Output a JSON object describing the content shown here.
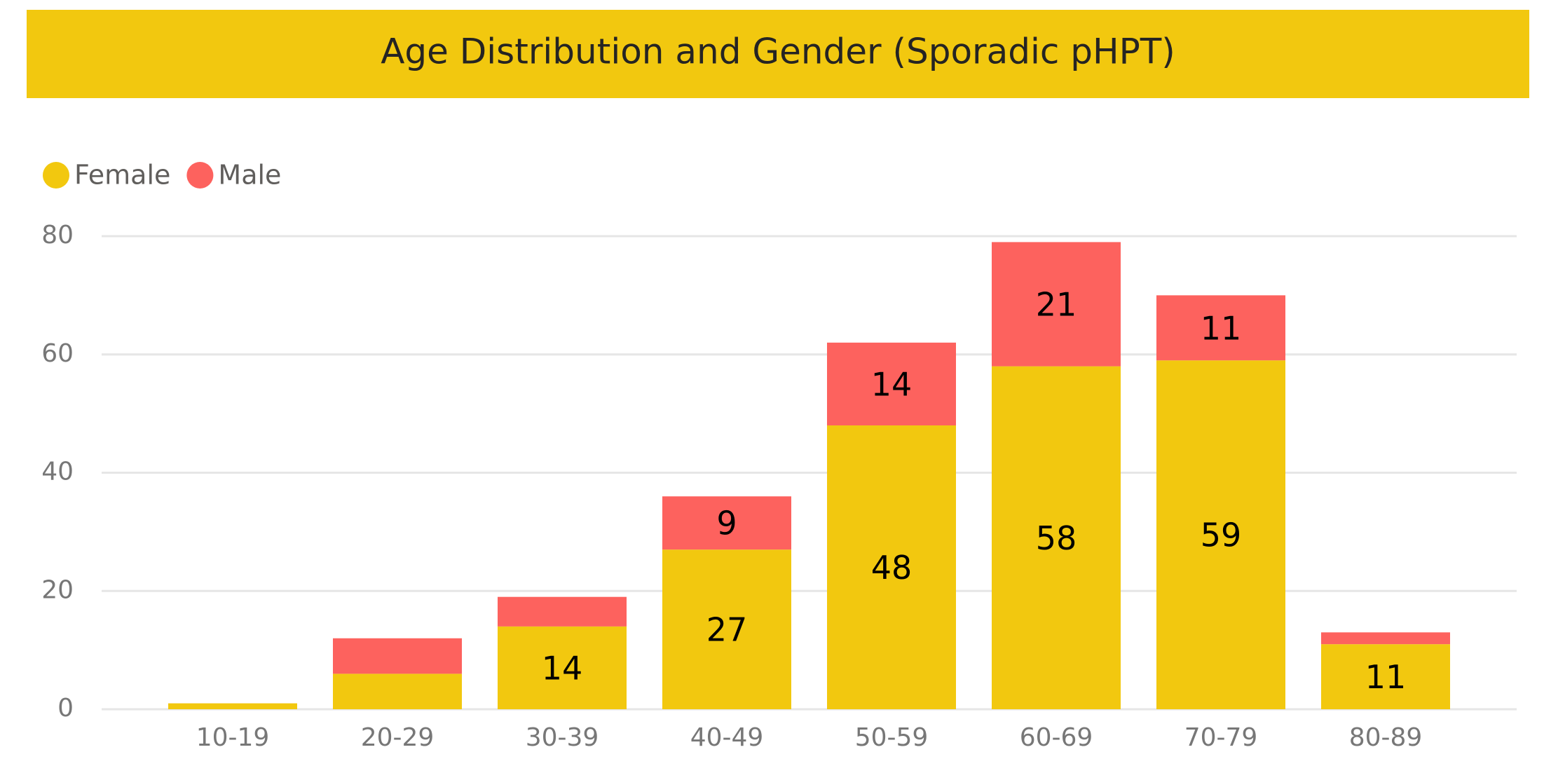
{
  "chart_data": {
    "type": "stacked_bar",
    "title": "Age Distribution and Gender (Sporadic pHPT)",
    "categories": [
      "10-19",
      "20-29",
      "30-39",
      "40-49",
      "50-59",
      "60-69",
      "70-79",
      "80-89"
    ],
    "series": [
      {
        "name": "Female",
        "color": "#F2C80F",
        "values": [
          1,
          6,
          14,
          27,
          48,
          58,
          59,
          11
        ],
        "value_labels": [
          null,
          null,
          "14",
          "27",
          "48",
          "58",
          "59",
          "11"
        ]
      },
      {
        "name": "Male",
        "color": "#FD625E",
        "values": [
          0,
          6,
          5,
          9,
          14,
          21,
          11,
          2
        ],
        "value_labels": [
          null,
          null,
          null,
          "9",
          "14",
          "21",
          "11",
          null
        ]
      }
    ],
    "ylim": [
      0,
      80
    ],
    "yticks": [
      0,
      20,
      40,
      60,
      80
    ],
    "grid": true,
    "legend": "top-left"
  }
}
